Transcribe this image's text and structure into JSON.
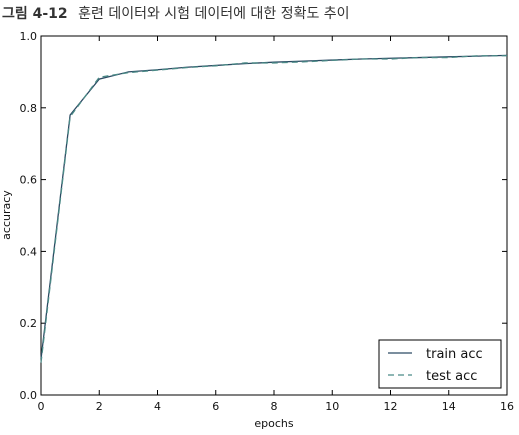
{
  "figure": {
    "number": "그림 4-12",
    "title": "훈련 데이터와 시험 데이터에 대한 정확도 추이"
  },
  "chart_data": {
    "type": "line",
    "xlabel": "epochs",
    "ylabel": "accuracy",
    "xlim": [
      0,
      16
    ],
    "ylim": [
      0.0,
      1.0
    ],
    "x_ticks": [
      "0",
      "2",
      "4",
      "6",
      "8",
      "10",
      "12",
      "14",
      "16"
    ],
    "y_ticks": [
      "0.0",
      "0.2",
      "0.4",
      "0.6",
      "0.8",
      "1.0"
    ],
    "grid": false,
    "legend_position": "bottom-right",
    "x": [
      0,
      1,
      2,
      3,
      4,
      5,
      6,
      7,
      8,
      9,
      10,
      11,
      12,
      13,
      14,
      15,
      16
    ],
    "series": [
      {
        "name": "train acc",
        "style": "solid",
        "color": "#2c4a63",
        "values": [
          0.1,
          0.78,
          0.88,
          0.9,
          0.906,
          0.913,
          0.918,
          0.923,
          0.927,
          0.93,
          0.933,
          0.936,
          0.938,
          0.94,
          0.942,
          0.944,
          0.946
        ]
      },
      {
        "name": "test acc",
        "style": "dashed",
        "color": "#4a8a86",
        "values": [
          0.09,
          0.775,
          0.885,
          0.898,
          0.905,
          0.912,
          0.917,
          0.925,
          0.925,
          0.928,
          0.932,
          0.936,
          0.936,
          0.94,
          0.94,
          0.945,
          0.945
        ]
      }
    ]
  }
}
